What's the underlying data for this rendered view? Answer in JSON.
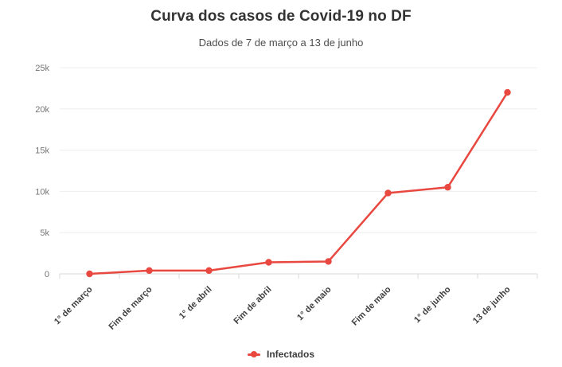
{
  "chart_data": {
    "type": "line",
    "title": "Curva dos casos de Covid-19 no DF",
    "subtitle": "Dados de 7 de março a 13 de junho",
    "categories": [
      "1° de março",
      "Fim de março",
      "1° de abril",
      "Fim de abril",
      "1° de maio",
      "Fim de maio",
      "1° de junho",
      "13 de junho"
    ],
    "series": [
      {
        "name": "Infectados",
        "color": "#e8483f",
        "values": [
          1,
          400,
          400,
          1400,
          1500,
          9800,
          10500,
          22000
        ]
      }
    ],
    "ylim": [
      0,
      25000
    ],
    "y_ticks": [
      {
        "value": 0,
        "label": "0"
      },
      {
        "value": 5000,
        "label": "5k"
      },
      {
        "value": 10000,
        "label": "10k"
      },
      {
        "value": 15000,
        "label": "15k"
      },
      {
        "value": 20000,
        "label": "20k"
      },
      {
        "value": 25000,
        "label": "25k"
      }
    ],
    "grid": "horizontal",
    "legend_position": "bottom",
    "colors": {
      "grid": "#ededed",
      "axis": "#d9d9d9",
      "background": "#ffffff"
    }
  }
}
